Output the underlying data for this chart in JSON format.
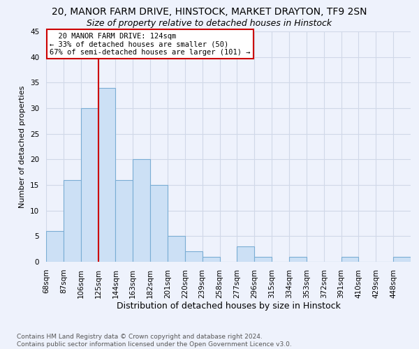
{
  "title1": "20, MANOR FARM DRIVE, HINSTOCK, MARKET DRAYTON, TF9 2SN",
  "title2": "Size of property relative to detached houses in Hinstock",
  "xlabel": "Distribution of detached houses by size in Hinstock",
  "ylabel": "Number of detached properties",
  "bar_values": [
    6,
    16,
    30,
    34,
    16,
    20,
    15,
    5,
    2,
    1,
    0,
    3,
    1,
    0,
    1,
    0,
    0,
    1,
    0,
    0,
    1
  ],
  "bin_labels": [
    "68sqm",
    "87sqm",
    "106sqm",
    "125sqm",
    "144sqm",
    "163sqm",
    "182sqm",
    "201sqm",
    "220sqm",
    "239sqm",
    "258sqm",
    "277sqm",
    "296sqm",
    "315sqm",
    "334sqm",
    "353sqm",
    "372sqm",
    "391sqm",
    "410sqm",
    "429sqm",
    "448sqm"
  ],
  "bar_color": "#cce0f5",
  "bar_edge_color": "#7aadd4",
  "property_label": "20 MANOR FARM DRIVE: 124sqm",
  "pct_smaller": 33,
  "pct_larger": 67,
  "n_smaller": 50,
  "n_larger": 101,
  "vline_bin": 3,
  "vline_color": "#cc0000",
  "annotation_box_color": "#cc0000",
  "ylim": [
    0,
    45
  ],
  "yticks": [
    0,
    5,
    10,
    15,
    20,
    25,
    30,
    35,
    40,
    45
  ],
  "grid_color": "#d0d8e8",
  "background_color": "#eef2fc",
  "footer": "Contains HM Land Registry data © Crown copyright and database right 2024.\nContains public sector information licensed under the Open Government Licence v3.0.",
  "title1_fontsize": 10,
  "title2_fontsize": 9,
  "xlabel_fontsize": 9,
  "ylabel_fontsize": 8,
  "tick_fontsize": 7.5,
  "footer_fontsize": 6.5
}
